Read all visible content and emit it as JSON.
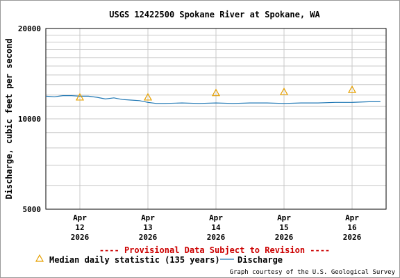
{
  "chart_data": {
    "type": "line",
    "title": "USGS 12422500 Spokane River at Spokane, WA",
    "ylabel": "Discharge, cubic feet per second",
    "xlabel": "",
    "y_scale": "log",
    "ylim": [
      5000,
      20000
    ],
    "y_ticks": [
      5000,
      10000,
      20000
    ],
    "y_tick_labels": [
      "5000",
      "10000",
      "20000"
    ],
    "x_ticks": [
      {
        "value": "2026-04-12",
        "label": [
          "Apr",
          "12",
          "2026"
        ]
      },
      {
        "value": "2026-04-13",
        "label": [
          "Apr",
          "13",
          "2026"
        ]
      },
      {
        "value": "2026-04-14",
        "label": [
          "Apr",
          "14",
          "2026"
        ]
      },
      {
        "value": "2026-04-15",
        "label": [
          "Apr",
          "15",
          "2026"
        ]
      },
      {
        "value": "2026-04-16",
        "label": [
          "Apr",
          "16",
          "2026"
        ]
      }
    ],
    "xlim": [
      "2026-04-11 12:00",
      "2026-04-16 12:00"
    ],
    "grid": true,
    "series": [
      {
        "name": "Discharge",
        "color": "#1f77b4",
        "x": [
          "2026-04-11 12:00",
          "2026-04-11 15:00",
          "2026-04-11 18:00",
          "2026-04-11 21:00",
          "2026-04-12 00:00",
          "2026-04-12 03:00",
          "2026-04-12 06:00",
          "2026-04-12 09:00",
          "2026-04-12 12:00",
          "2026-04-12 15:00",
          "2026-04-12 18:00",
          "2026-04-12 21:00",
          "2026-04-13 00:00",
          "2026-04-13 03:00",
          "2026-04-13 06:00",
          "2026-04-13 12:00",
          "2026-04-13 18:00",
          "2026-04-14 00:00",
          "2026-04-14 06:00",
          "2026-04-14 12:00",
          "2026-04-14 18:00",
          "2026-04-15 00:00",
          "2026-04-15 06:00",
          "2026-04-15 12:00",
          "2026-04-15 18:00",
          "2026-04-16 00:00",
          "2026-04-16 06:00",
          "2026-04-16 10:00"
        ],
        "values": [
          11900,
          11850,
          11950,
          11950,
          11900,
          11900,
          11800,
          11650,
          11750,
          11600,
          11550,
          11500,
          11350,
          11250,
          11250,
          11300,
          11250,
          11300,
          11250,
          11300,
          11300,
          11250,
          11300,
          11300,
          11350,
          11350,
          11400,
          11400
        ]
      },
      {
        "name": "Median daily statistic (135 years)",
        "marker": "triangle",
        "color": "#e6a000",
        "x": [
          "2026-04-12 00:00",
          "2026-04-13 00:00",
          "2026-04-14 00:00",
          "2026-04-15 00:00",
          "2026-04-16 00:00"
        ],
        "values": [
          11800,
          11800,
          12200,
          12300,
          12500
        ]
      }
    ],
    "legend": {
      "placement": "bottom-left",
      "items": [
        "Median daily statistic (135 years)",
        "Discharge"
      ]
    },
    "annotation": "---- Provisional Data Subject to Revision ----",
    "annotation_color": "#cc0000",
    "credit": "Graph courtesy of the U.S. Geological Survey"
  }
}
